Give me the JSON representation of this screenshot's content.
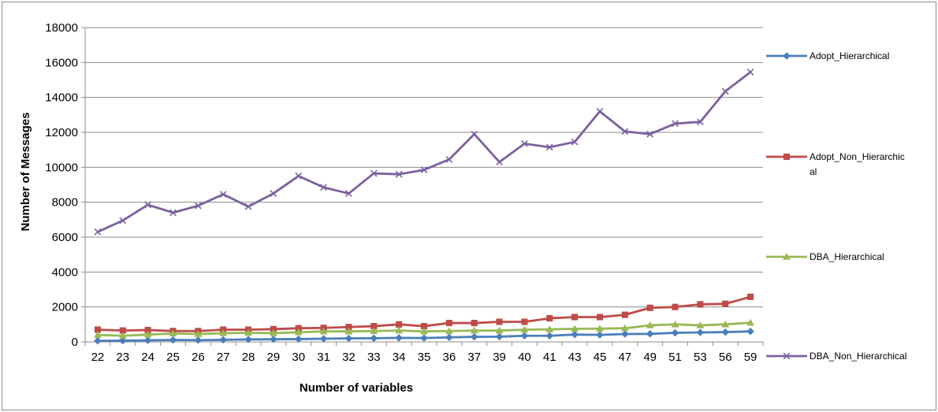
{
  "chart_data": {
    "type": "line",
    "title": "",
    "xlabel": "Number of variables",
    "ylabel": "Number of Messages",
    "ylim": [
      0,
      18000
    ],
    "yticks": [
      0,
      2000,
      4000,
      6000,
      8000,
      10000,
      12000,
      14000,
      16000,
      18000
    ],
    "grid": "horizontal",
    "legend_position": "right",
    "categories": [
      "22",
      "23",
      "24",
      "25",
      "26",
      "27",
      "28",
      "29",
      "30",
      "31",
      "32",
      "33",
      "34",
      "35",
      "36",
      "37",
      "39",
      "40",
      "41",
      "43",
      "45",
      "47",
      "49",
      "51",
      "53",
      "56",
      "59"
    ],
    "series": [
      {
        "name": "Adopt_Hierarchical",
        "legend_lines": [
          "Adopt_Hierarchical"
        ],
        "color": "#4a7ebb",
        "marker": "diamond",
        "values": [
          60,
          70,
          90,
          110,
          100,
          120,
          140,
          150,
          160,
          180,
          200,
          210,
          230,
          220,
          260,
          290,
          300,
          350,
          350,
          420,
          400,
          450,
          460,
          520,
          540,
          560,
          600
        ]
      },
      {
        "name": "Adopt_Non_Hierarchical",
        "legend_lines": [
          "Adopt_Non_Hierarchic",
          "al"
        ],
        "color": "#be4b48",
        "marker": "square",
        "values": [
          700,
          650,
          680,
          620,
          620,
          700,
          700,
          730,
          780,
          800,
          850,
          900,
          1000,
          900,
          1080,
          1080,
          1150,
          1150,
          1350,
          1420,
          1420,
          1550,
          1950,
          2000,
          2150,
          2180,
          2580
        ]
      },
      {
        "name": "DBA_Hierarchical",
        "legend_lines": [
          "DBA_Hierarchical"
        ],
        "color": "#98b954",
        "marker": "triangle",
        "values": [
          400,
          350,
          420,
          480,
          450,
          500,
          520,
          500,
          550,
          600,
          600,
          620,
          650,
          600,
          620,
          650,
          650,
          700,
          720,
          750,
          760,
          780,
          950,
          1000,
          950,
          1000,
          1100
        ]
      },
      {
        "name": "DBA_Non_Hierarchical",
        "legend_lines": [
          "DBA_Non_Hierarchical"
        ],
        "color": "#7d60a0",
        "marker": "x",
        "values": [
          6300,
          6950,
          7850,
          7400,
          7800,
          8450,
          7750,
          8500,
          9500,
          8850,
          8500,
          9650,
          9600,
          9850,
          10450,
          11900,
          10300,
          11350,
          11150,
          11450,
          13200,
          12050,
          11900,
          12500,
          12600,
          14350,
          15450
        ]
      }
    ]
  }
}
